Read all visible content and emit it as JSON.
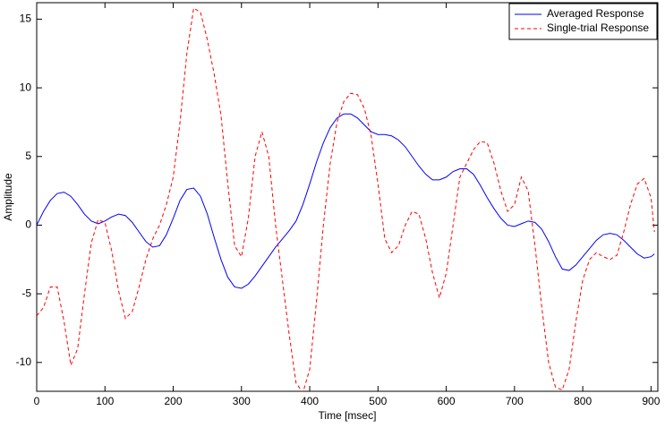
{
  "chart_data": {
    "type": "line",
    "xlabel": "Time [msec]",
    "ylabel": "Amplitude",
    "x": [
      0,
      10,
      20,
      30,
      40,
      50,
      60,
      70,
      80,
      90,
      100,
      110,
      120,
      130,
      140,
      150,
      160,
      170,
      180,
      190,
      200,
      210,
      220,
      230,
      240,
      250,
      260,
      270,
      280,
      290,
      300,
      310,
      320,
      330,
      340,
      350,
      360,
      370,
      380,
      390,
      400,
      410,
      420,
      430,
      440,
      450,
      460,
      470,
      480,
      490,
      500,
      510,
      520,
      530,
      540,
      550,
      560,
      570,
      580,
      590,
      600,
      610,
      620,
      630,
      640,
      650,
      660,
      670,
      680,
      690,
      700,
      710,
      720,
      730,
      740,
      750,
      760,
      770,
      780,
      790,
      800,
      810,
      820,
      830,
      840,
      850,
      860,
      870,
      880,
      890,
      900,
      905
    ],
    "series": [
      {
        "name": "Averaged Response",
        "color": "#0000ff",
        "dash": false,
        "values": [
          0,
          1,
          1.8,
          2.3,
          2.4,
          2.1,
          1.5,
          0.8,
          0.3,
          0.1,
          0.3,
          0.6,
          0.8,
          0.7,
          0.2,
          -0.5,
          -1.2,
          -1.6,
          -1.5,
          -0.7,
          0.5,
          1.8,
          2.6,
          2.7,
          2.1,
          0.8,
          -0.9,
          -2.5,
          -3.8,
          -4.5,
          -4.6,
          -4.3,
          -3.7,
          -3.0,
          -2.3,
          -1.6,
          -1.0,
          -0.4,
          0.3,
          1.5,
          3.0,
          4.6,
          6.0,
          7.1,
          7.8,
          8.1,
          8.1,
          7.8,
          7.3,
          6.8,
          6.6,
          6.6,
          6.5,
          6.2,
          5.7,
          5.0,
          4.3,
          3.7,
          3.3,
          3.3,
          3.5,
          3.9,
          4.1,
          4.1,
          3.7,
          2.9,
          2.0,
          1.2,
          0.5,
          0.0,
          -0.1,
          0.1,
          0.3,
          0.2,
          -0.3,
          -1.2,
          -2.3,
          -3.2,
          -3.3,
          -2.9,
          -2.3,
          -1.7,
          -1.1,
          -0.7,
          -0.6,
          -0.7,
          -1.1,
          -1.6,
          -2.1,
          -2.4,
          -2.3,
          -2.1
        ]
      },
      {
        "name": "Single-trial Response",
        "color": "#ff0000",
        "dash": true,
        "values": [
          -6.6,
          -6.0,
          -4.5,
          -4.5,
          -7.0,
          -10.2,
          -9.0,
          -5.0,
          -1.3,
          0.4,
          0.2,
          -1.9,
          -4.8,
          -6.8,
          -6.3,
          -4.5,
          -2.5,
          -1.0,
          0.0,
          1.5,
          3.5,
          7.5,
          12.5,
          15.8,
          15.5,
          13.5,
          11.0,
          8.0,
          3.0,
          -1.5,
          -2.3,
          0.5,
          5.0,
          6.8,
          5.0,
          0.0,
          -4.0,
          -8.0,
          -11.5,
          -12.2,
          -10.5,
          -5.5,
          0.0,
          4.5,
          7.5,
          9.0,
          9.6,
          9.5,
          8.5,
          6.5,
          3.0,
          -1.0,
          -2.0,
          -1.5,
          0.0,
          1.0,
          0.8,
          -1.0,
          -3.5,
          -5.3,
          -3.5,
          0.0,
          3.5,
          4.5,
          5.5,
          6.1,
          6.0,
          4.5,
          2.5,
          1.0,
          1.5,
          3.5,
          2.5,
          -1.5,
          -6.0,
          -10.0,
          -11.8,
          -12.0,
          -10.5,
          -7.0,
          -4.0,
          -2.5,
          -2.0,
          -2.3,
          -2.5,
          -2.2,
          -0.5,
          1.5,
          3.0,
          3.4,
          2.0,
          -0.5
        ]
      }
    ],
    "xlim": [
      0,
      910
    ],
    "ylim": [
      -12.1,
      16.2
    ],
    "xticks": [
      0,
      100,
      200,
      300,
      400,
      500,
      600,
      700,
      800,
      900
    ],
    "yticks": [
      -10,
      -5,
      0,
      5,
      10,
      15
    ],
    "grid": false,
    "legend": "upper right"
  }
}
